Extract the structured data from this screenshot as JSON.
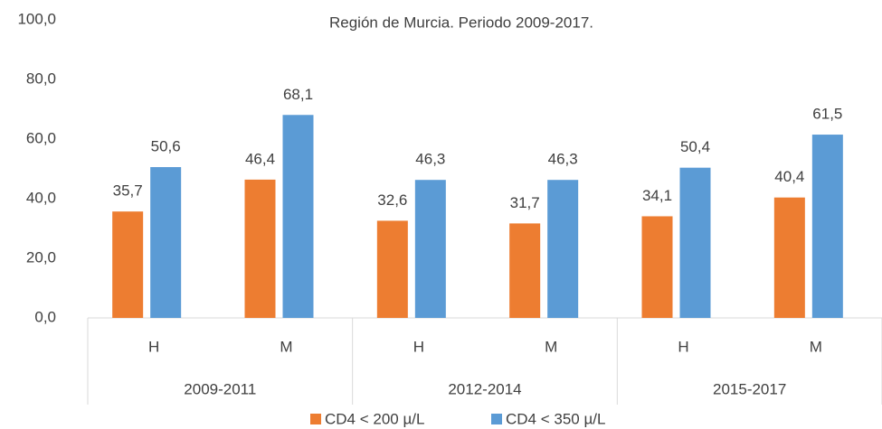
{
  "chart_data": {
    "type": "bar",
    "title": "Región de Murcia. Periodo 2009-2017.",
    "categories": [
      "H",
      "M",
      "H",
      "M",
      "H",
      "M"
    ],
    "groups": [
      "2009-2011",
      "2012-2014",
      "2015-2017"
    ],
    "series": [
      {
        "name": "CD4 < 200 µ/L",
        "color": "#ed7d31",
        "values": [
          35.7,
          46.4,
          32.6,
          31.7,
          34.1,
          40.4
        ],
        "value_labels": [
          "35,7",
          "46,4",
          "32,6",
          "31,7",
          "34,1",
          "40,4"
        ]
      },
      {
        "name": "CD4 < 350 µ/L",
        "color": "#5b9bd5",
        "values": [
          50.6,
          68.1,
          46.3,
          46.3,
          50.4,
          61.5
        ],
        "value_labels": [
          "50,6",
          "68,1",
          "46,3",
          "46,3",
          "50,4",
          "61,5"
        ]
      }
    ],
    "ylim": [
      0,
      100
    ],
    "yticks": [
      {
        "value": 0,
        "label": "0,0"
      },
      {
        "value": 20,
        "label": "20,0"
      },
      {
        "value": 40,
        "label": "40,0"
      },
      {
        "value": 60,
        "label": "60,0"
      },
      {
        "value": 80,
        "label": "80,0"
      },
      {
        "value": 100,
        "label": "100,0"
      }
    ],
    "legend": "bottom"
  }
}
